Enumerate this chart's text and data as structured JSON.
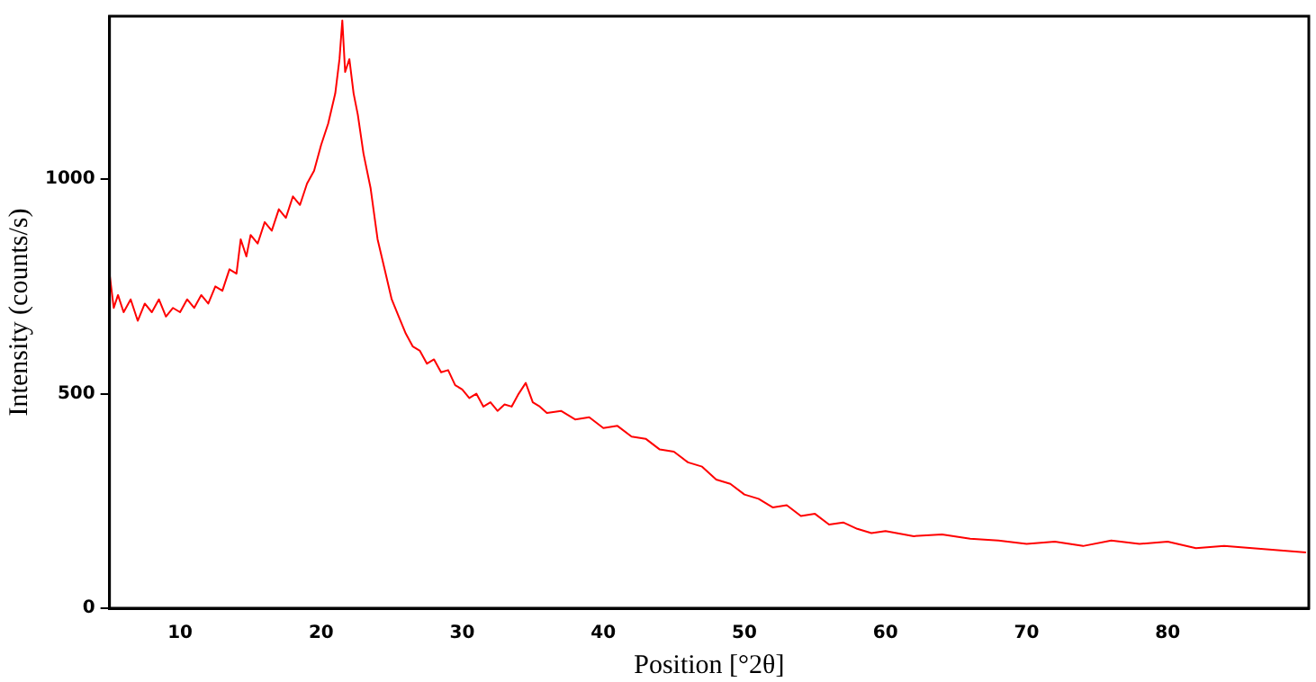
{
  "chart_data": {
    "type": "line",
    "xlabel": "Position [°2θ]",
    "ylabel": "Intensity (counts/s)",
    "xlim": [
      5,
      90
    ],
    "ylim": [
      0,
      1380
    ],
    "xticks": [
      10,
      20,
      30,
      40,
      50,
      60,
      70,
      80
    ],
    "yticks": [
      0,
      500,
      1000
    ],
    "grid": false,
    "legend": false,
    "marker": "none",
    "line_style": "solid",
    "series": [
      {
        "color": "#ff0000",
        "x": [
          5,
          5.3,
          5.6,
          6,
          6.5,
          7,
          7.5,
          8,
          8.5,
          9,
          9.5,
          10,
          10.5,
          11,
          11.5,
          12,
          12.5,
          13,
          13.5,
          14,
          14.3,
          14.7,
          15,
          15.5,
          16,
          16.5,
          17,
          17.5,
          18,
          18.5,
          19,
          19.5,
          20,
          20.5,
          21,
          21.3,
          21.5,
          21.7,
          22,
          22.3,
          22.6,
          23,
          23.5,
          24,
          24.5,
          25,
          25.5,
          26,
          26.5,
          27,
          27.5,
          28,
          28.5,
          29,
          29.5,
          30,
          30.5,
          31,
          31.5,
          32,
          32.5,
          33,
          33.5,
          34,
          34.5,
          35,
          35.5,
          36,
          37,
          38,
          39,
          40,
          41,
          42,
          43,
          44,
          45,
          46,
          47,
          48,
          49,
          50,
          51,
          52,
          53,
          54,
          55,
          56,
          57,
          58,
          59,
          60,
          62,
          64,
          66,
          68,
          70,
          72,
          74,
          76,
          78,
          80,
          82,
          84,
          86,
          88,
          89.8
        ],
        "values": [
          780,
          700,
          730,
          690,
          720,
          670,
          710,
          690,
          720,
          680,
          700,
          690,
          720,
          700,
          730,
          710,
          750,
          740,
          790,
          780,
          860,
          820,
          870,
          850,
          900,
          880,
          930,
          910,
          960,
          940,
          990,
          1020,
          1080,
          1130,
          1200,
          1280,
          1370,
          1250,
          1280,
          1200,
          1150,
          1060,
          980,
          860,
          790,
          720,
          680,
          640,
          610,
          600,
          570,
          580,
          550,
          555,
          520,
          510,
          490,
          500,
          470,
          480,
          460,
          475,
          470,
          500,
          525,
          480,
          470,
          455,
          460,
          440,
          445,
          420,
          425,
          400,
          395,
          370,
          365,
          340,
          330,
          300,
          290,
          265,
          255,
          235,
          240,
          215,
          220,
          195,
          200,
          185,
          175,
          180,
          168,
          172,
          162,
          158,
          150,
          155,
          145,
          158,
          150,
          155,
          140,
          145,
          140,
          135,
          130
        ]
      }
    ]
  }
}
